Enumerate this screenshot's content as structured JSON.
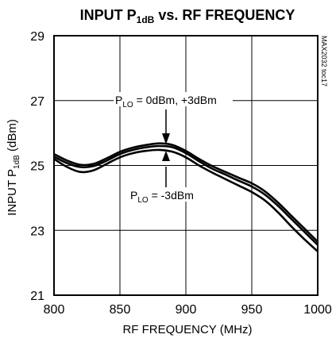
{
  "chart_data": {
    "type": "line",
    "title": {
      "main": "INPUT P",
      "sub": "1dB",
      "rest": " vs. RF FREQUENCY"
    },
    "xlabel": "RF FREQUENCY (MHz)",
    "ylabel": {
      "main": "INPUT P",
      "sub": "1dB",
      "rest": " (dBm)"
    },
    "xlim": [
      800,
      1000
    ],
    "ylim": [
      21,
      29
    ],
    "xticks": [
      "800",
      "850",
      "900",
      "950",
      "1000"
    ],
    "yticks": [
      "21",
      "23",
      "25",
      "27",
      "29"
    ],
    "grid": true,
    "part_code": "MAX2032 toc17",
    "annotations": [
      {
        "main": "P",
        "sub": "LO",
        "rest": " = 0dBm, +3dBm"
      },
      {
        "main": "P",
        "sub": "LO",
        "rest": " = -3dBm"
      }
    ],
    "series": [
      {
        "x": [
          800,
          810,
          820,
          830,
          840,
          850,
          860,
          870,
          880,
          890,
          900,
          910,
          920,
          930,
          940,
          950,
          960,
          970,
          980,
          990,
          1000
        ],
        "values": [
          25.35,
          25.15,
          25.02,
          25.05,
          25.22,
          25.42,
          25.55,
          25.63,
          25.68,
          25.63,
          25.45,
          25.2,
          24.98,
          24.8,
          24.62,
          24.45,
          24.2,
          23.85,
          23.45,
          23.05,
          22.65
        ]
      },
      {
        "x": [
          800,
          810,
          820,
          830,
          840,
          850,
          860,
          870,
          880,
          890,
          900,
          910,
          920,
          930,
          940,
          950,
          960,
          970,
          980,
          990,
          1000
        ],
        "values": [
          25.27,
          25.07,
          24.95,
          24.98,
          25.15,
          25.35,
          25.48,
          25.56,
          25.6,
          25.56,
          25.38,
          25.13,
          24.9,
          24.72,
          24.53,
          24.35,
          24.1,
          23.75,
          23.35,
          22.95,
          22.55
        ]
      },
      {
        "x": [
          800,
          810,
          820,
          830,
          840,
          850,
          860,
          870,
          880,
          890,
          900,
          910,
          920,
          930,
          940,
          950,
          960,
          970,
          980,
          990,
          1000
        ],
        "values": [
          25.2,
          24.95,
          24.8,
          24.85,
          25.05,
          25.25,
          25.38,
          25.45,
          25.48,
          25.42,
          25.25,
          25.0,
          24.78,
          24.58,
          24.38,
          24.18,
          23.92,
          23.55,
          23.12,
          22.72,
          22.35
        ]
      }
    ]
  }
}
